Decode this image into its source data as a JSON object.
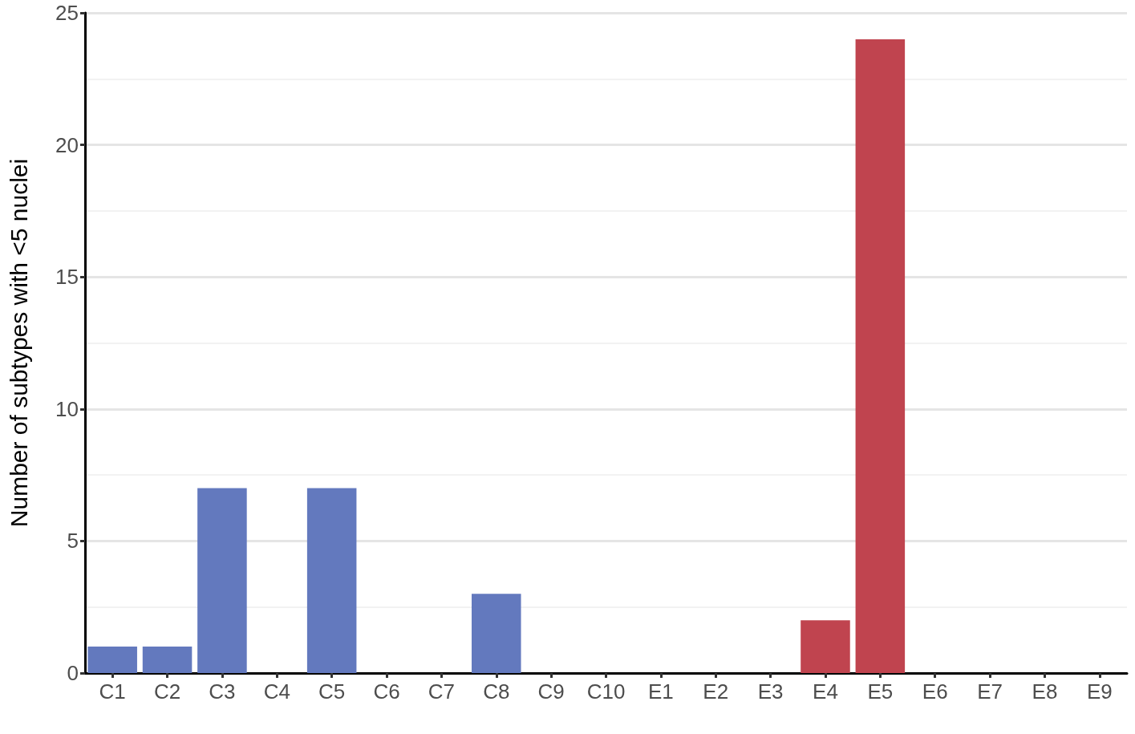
{
  "chart_data": {
    "type": "bar",
    "ylabel": "Number of subtypes with <5 nuclei",
    "categories": [
      "C1",
      "C2",
      "C3",
      "C4",
      "C5",
      "C6",
      "C7",
      "C8",
      "C9",
      "C10",
      "E1",
      "E2",
      "E3",
      "E4",
      "E5",
      "E6",
      "E7",
      "E8",
      "E9"
    ],
    "values": [
      1,
      1,
      7,
      0,
      7,
      0,
      0,
      3,
      0,
      0,
      0,
      0,
      0,
      2,
      24,
      0,
      0,
      0,
      0
    ],
    "colors": [
      "#6379be",
      "#6379be",
      "#6379be",
      "#6379be",
      "#6379be",
      "#6379be",
      "#6379be",
      "#6379be",
      "#6379be",
      "#6379be",
      "#c0444f",
      "#c0444f",
      "#c0444f",
      "#c0444f",
      "#c0444f",
      "#c0444f",
      "#c0444f",
      "#c0444f",
      "#c0444f"
    ],
    "ylim": [
      0,
      25
    ],
    "yticks": [
      0,
      5,
      10,
      15,
      20,
      25
    ],
    "grid": "y"
  }
}
